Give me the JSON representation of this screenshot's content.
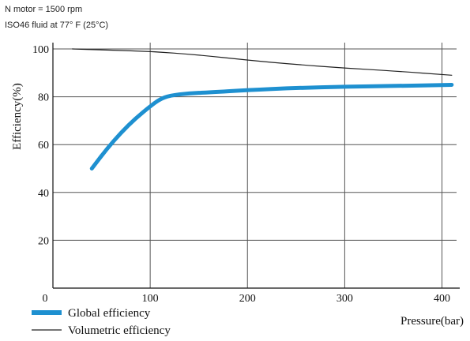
{
  "notes": {
    "line1": "N motor = 1500 rpm",
    "line2": "ISO46 fluid at 77° F (25°C)"
  },
  "chart_data": {
    "type": "line",
    "xlabel": "Pressure(bar)",
    "ylabel": "Efficiency(%)",
    "xlim": [
      0,
      415
    ],
    "ylim": [
      0,
      100
    ],
    "x_ticks": [
      0,
      100,
      200,
      300,
      400
    ],
    "y_ticks": [
      20,
      40,
      60,
      80,
      100
    ],
    "grid": true,
    "legend_position": "bottom-left",
    "series": [
      {
        "name": "Global efficiency",
        "color": "#1e90d0",
        "points": [
          [
            40,
            50
          ],
          [
            55,
            58
          ],
          [
            70,
            65
          ],
          [
            85,
            71
          ],
          [
            100,
            76
          ],
          [
            110,
            79
          ],
          [
            120,
            80.5
          ],
          [
            140,
            81.5
          ],
          [
            160,
            81.8
          ],
          [
            200,
            82.8
          ],
          [
            250,
            83.7
          ],
          [
            300,
            84.2
          ],
          [
            350,
            84.5
          ],
          [
            410,
            85
          ]
        ]
      },
      {
        "name": "Volumetric efficiency",
        "color": "#222222",
        "points": [
          [
            20,
            100
          ],
          [
            50,
            99.6
          ],
          [
            100,
            99
          ],
          [
            150,
            97.5
          ],
          [
            200,
            95.3
          ],
          [
            250,
            93.5
          ],
          [
            300,
            92
          ],
          [
            350,
            90.8
          ],
          [
            410,
            89
          ]
        ]
      }
    ]
  }
}
